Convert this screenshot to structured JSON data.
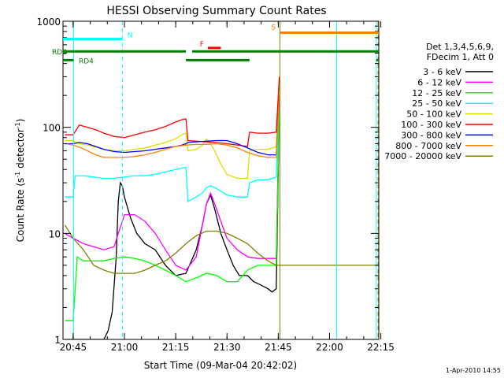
{
  "chart_data": {
    "type": "line",
    "title": "HESSI Observing Summary Count Rates",
    "xlabel": "Start Time (09-Mar-04 20:42:02)",
    "ylabel_main": "Count Rate (s",
    "ylabel_sup1": "-1",
    "ylabel_mid": " detector",
    "ylabel_sup2": "-1",
    "ylabel_end": ")",
    "xlim_min": [
      20.7006,
      22.24
    ],
    "ylim": [
      1,
      1000
    ],
    "yscale": "log",
    "xticks": [
      {
        "v": 20.75,
        "label": "20:45"
      },
      {
        "v": 21.0,
        "label": "21:00"
      },
      {
        "v": 21.25,
        "label": "21:15"
      },
      {
        "v": 21.5,
        "label": "21:30"
      },
      {
        "v": 21.75,
        "label": "21:45"
      },
      {
        "v": 22.0,
        "label": "22:00"
      },
      {
        "v": 22.25,
        "label": "22:15"
      }
    ],
    "yticks": [
      {
        "v": 1,
        "label": "1"
      },
      {
        "v": 10,
        "label": "10"
      },
      {
        "v": 100,
        "label": "100"
      },
      {
        "v": 1000,
        "label": "1000"
      }
    ],
    "legend_header": [
      "Det 1,3,4,5,6,9,",
      "FDecim 1, Att 0"
    ],
    "timestamp": "1-Apr-2010 14:55",
    "series": [
      {
        "name": "3 - 6 keV",
        "color": "#000000",
        "x": [
          20.71,
          20.83,
          20.88,
          20.9,
          20.92,
          20.94,
          20.96,
          20.97,
          20.98,
          20.99,
          21.0,
          21.03,
          21.06,
          21.1,
          21.15,
          21.2,
          21.25,
          21.3,
          21.35,
          21.38,
          21.4,
          21.42,
          21.44,
          21.47,
          21.5,
          21.53,
          21.56,
          21.6,
          21.63,
          21.66,
          21.7,
          21.72,
          21.74,
          21.755
        ],
        "y": [
          1,
          1,
          1,
          1,
          1.2,
          1.8,
          6,
          20,
          30,
          28,
          22,
          14,
          10,
          8,
          7,
          5,
          4,
          4.2,
          7,
          12,
          19,
          23,
          17,
          10,
          7,
          5,
          4,
          4,
          3.5,
          3.3,
          3,
          2.8,
          3,
          150
        ]
      },
      {
        "name": "6 - 12 keV",
        "color": "#ff00ff",
        "x": [
          20.71,
          20.75,
          20.8,
          20.85,
          20.9,
          20.95,
          20.97,
          20.99,
          21.0,
          21.05,
          21.1,
          21.15,
          21.2,
          21.25,
          21.3,
          21.35,
          21.38,
          21.4,
          21.42,
          21.44,
          21.47,
          21.5,
          21.55,
          21.6,
          21.65,
          21.7,
          21.74,
          21.755
        ],
        "y": [
          10,
          9,
          8,
          7.5,
          7,
          7.5,
          10,
          13,
          15,
          15,
          13,
          10,
          7,
          5,
          4.5,
          6,
          12,
          19,
          24,
          19,
          13,
          9,
          7,
          6,
          5.8,
          5.8,
          5.8,
          200
        ]
      },
      {
        "name": "12 - 25 keV",
        "color": "#00ff00",
        "x": [
          20.71,
          20.75,
          20.77,
          20.8,
          20.85,
          20.9,
          20.95,
          21.0,
          21.05,
          21.1,
          21.15,
          21.2,
          21.25,
          21.3,
          21.35,
          21.4,
          21.45,
          21.5,
          21.55,
          21.6,
          21.65,
          21.7,
          21.74,
          21.755
        ],
        "y": [
          1.5,
          1.5,
          6,
          5.5,
          5.5,
          5.5,
          5.8,
          6,
          5.8,
          5.5,
          5,
          4.5,
          4,
          3.5,
          3.8,
          4.2,
          4,
          3.5,
          3.5,
          4.5,
          5,
          5,
          5,
          150
        ]
      },
      {
        "name": "25 - 50 keV",
        "color": "#00ffff",
        "x": [
          20.71,
          20.75,
          20.76,
          20.8,
          20.85,
          20.9,
          20.95,
          21.0,
          21.05,
          21.1,
          21.15,
          21.2,
          21.25,
          21.3,
          21.31,
          21.35,
          21.38,
          21.4,
          21.42,
          21.44,
          21.47,
          21.5,
          21.55,
          21.6,
          21.61,
          21.65,
          21.7,
          21.74,
          21.755
        ],
        "y": [
          22,
          22,
          35,
          35,
          34,
          33,
          33,
          34,
          35,
          35,
          36,
          38,
          40,
          42,
          20,
          22,
          24,
          27,
          28,
          27,
          25,
          23,
          22,
          22,
          30,
          32,
          32,
          34,
          200
        ]
      },
      {
        "name": "50 - 100 keV",
        "color": "#dddd00",
        "x": [
          20.71,
          20.75,
          20.78,
          20.82,
          20.86,
          20.9,
          20.95,
          21.0,
          21.05,
          21.1,
          21.15,
          21.2,
          21.25,
          21.28,
          21.3,
          21.31,
          21.35,
          21.38,
          21.4,
          21.42,
          21.44,
          21.47,
          21.5,
          21.55,
          21.6,
          21.61,
          21.65,
          21.7,
          21.74,
          21.755
        ],
        "y": [
          75,
          75,
          70,
          68,
          65,
          62,
          60,
          60,
          62,
          64,
          68,
          72,
          78,
          85,
          88,
          60,
          62,
          68,
          78,
          70,
          60,
          45,
          36,
          33,
          33,
          60,
          62,
          62,
          66,
          250
        ]
      },
      {
        "name": "100 - 300 keV",
        "color": "#ff0000",
        "x": [
          20.71,
          20.75,
          20.78,
          20.82,
          20.86,
          20.9,
          20.95,
          21.0,
          21.05,
          21.1,
          21.15,
          21.2,
          21.25,
          21.28,
          21.3,
          21.31,
          21.35,
          21.4,
          21.45,
          21.5,
          21.55,
          21.6,
          21.61,
          21.65,
          21.7,
          21.74,
          21.755
        ],
        "y": [
          85,
          85,
          105,
          100,
          95,
          88,
          82,
          80,
          85,
          90,
          95,
          102,
          112,
          118,
          120,
          75,
          74,
          73,
          72,
          70,
          68,
          66,
          90,
          88,
          88,
          90,
          300
        ]
      },
      {
        "name": "300 - 800 keV",
        "color": "#0000ff",
        "x": [
          20.71,
          20.75,
          20.78,
          20.82,
          20.86,
          20.9,
          20.95,
          21.0,
          21.05,
          21.1,
          21.15,
          21.2,
          21.25,
          21.28,
          21.3,
          21.31,
          21.35,
          21.4,
          21.45,
          21.5,
          21.55,
          21.6,
          21.65,
          21.7,
          21.74,
          21.755
        ],
        "y": [
          70,
          70,
          72,
          70,
          66,
          62,
          59,
          58,
          59,
          60,
          62,
          64,
          66,
          68,
          70,
          72,
          73,
          74,
          75,
          75,
          70,
          64,
          58,
          55,
          55,
          200
        ]
      },
      {
        "name": "800 - 7000 keV",
        "color": "#ff8000",
        "x": [
          20.71,
          20.75,
          20.78,
          20.82,
          20.86,
          20.9,
          20.95,
          21.0,
          21.05,
          21.1,
          21.15,
          21.2,
          21.25,
          21.3,
          21.35,
          21.4,
          21.45,
          21.5,
          21.55,
          21.6,
          21.65,
          21.7,
          21.74,
          21.755
        ],
        "y": [
          70,
          68,
          65,
          60,
          55,
          52,
          52,
          52,
          53,
          55,
          58,
          62,
          66,
          68,
          69,
          69,
          70,
          68,
          64,
          58,
          54,
          52,
          52,
          200
        ]
      },
      {
        "name": "7000 - 20000 keV",
        "color": "#808000",
        "x": [
          20.71,
          20.75,
          20.8,
          20.85,
          20.9,
          20.95,
          21.0,
          21.05,
          21.1,
          21.15,
          21.2,
          21.25,
          21.3,
          21.35,
          21.4,
          21.45,
          21.5,
          21.55,
          21.6,
          21.65,
          21.7,
          21.74,
          21.76,
          22.24
        ],
        "y": [
          12,
          9,
          7,
          5,
          4.5,
          4.2,
          4.2,
          4.2,
          4.5,
          5,
          5.5,
          6.5,
          8,
          9.5,
          10.5,
          10.5,
          10,
          9,
          8,
          6.5,
          5.5,
          5,
          5,
          5
        ]
      }
    ],
    "vlines": [
      {
        "x": 20.752,
        "color": "#00ffff",
        "style": "solid"
      },
      {
        "x": 20.99,
        "color": "#00ffff",
        "style": "dashed"
      },
      {
        "x": 21.758,
        "color": "#808000",
        "style": "solid"
      },
      {
        "x": 22.035,
        "color": "#00ffff",
        "style": "solid"
      },
      {
        "x": 22.228,
        "color": "#00ffff",
        "style": "solid"
      },
      {
        "x": 22.236,
        "color": "#ff8000",
        "style": "dashed"
      }
    ],
    "flag_bars": [
      {
        "label": "N",
        "color": "#00ffff",
        "y": 680,
        "segments": [
          [
            20.7006,
            20.99
          ]
        ]
      },
      {
        "label": "S",
        "color": "#ff8000",
        "y": 780,
        "segments": [
          [
            21.758,
            22.24
          ]
        ]
      },
      {
        "label": "F",
        "color": "#ff0000",
        "y": 560,
        "segments": [
          [
            21.407,
            21.47
          ]
        ]
      },
      {
        "label": "RD8",
        "color": "#008000",
        "y": 520,
        "segments": [
          [
            20.7006,
            21.3
          ],
          [
            21.33,
            22.24
          ]
        ]
      },
      {
        "label": "RD4",
        "color": "#008000",
        "y": 430,
        "segments": [
          [
            20.7006,
            20.752
          ],
          [
            21.3,
            21.61
          ],
          [
            22.228,
            22.24
          ]
        ]
      }
    ]
  }
}
